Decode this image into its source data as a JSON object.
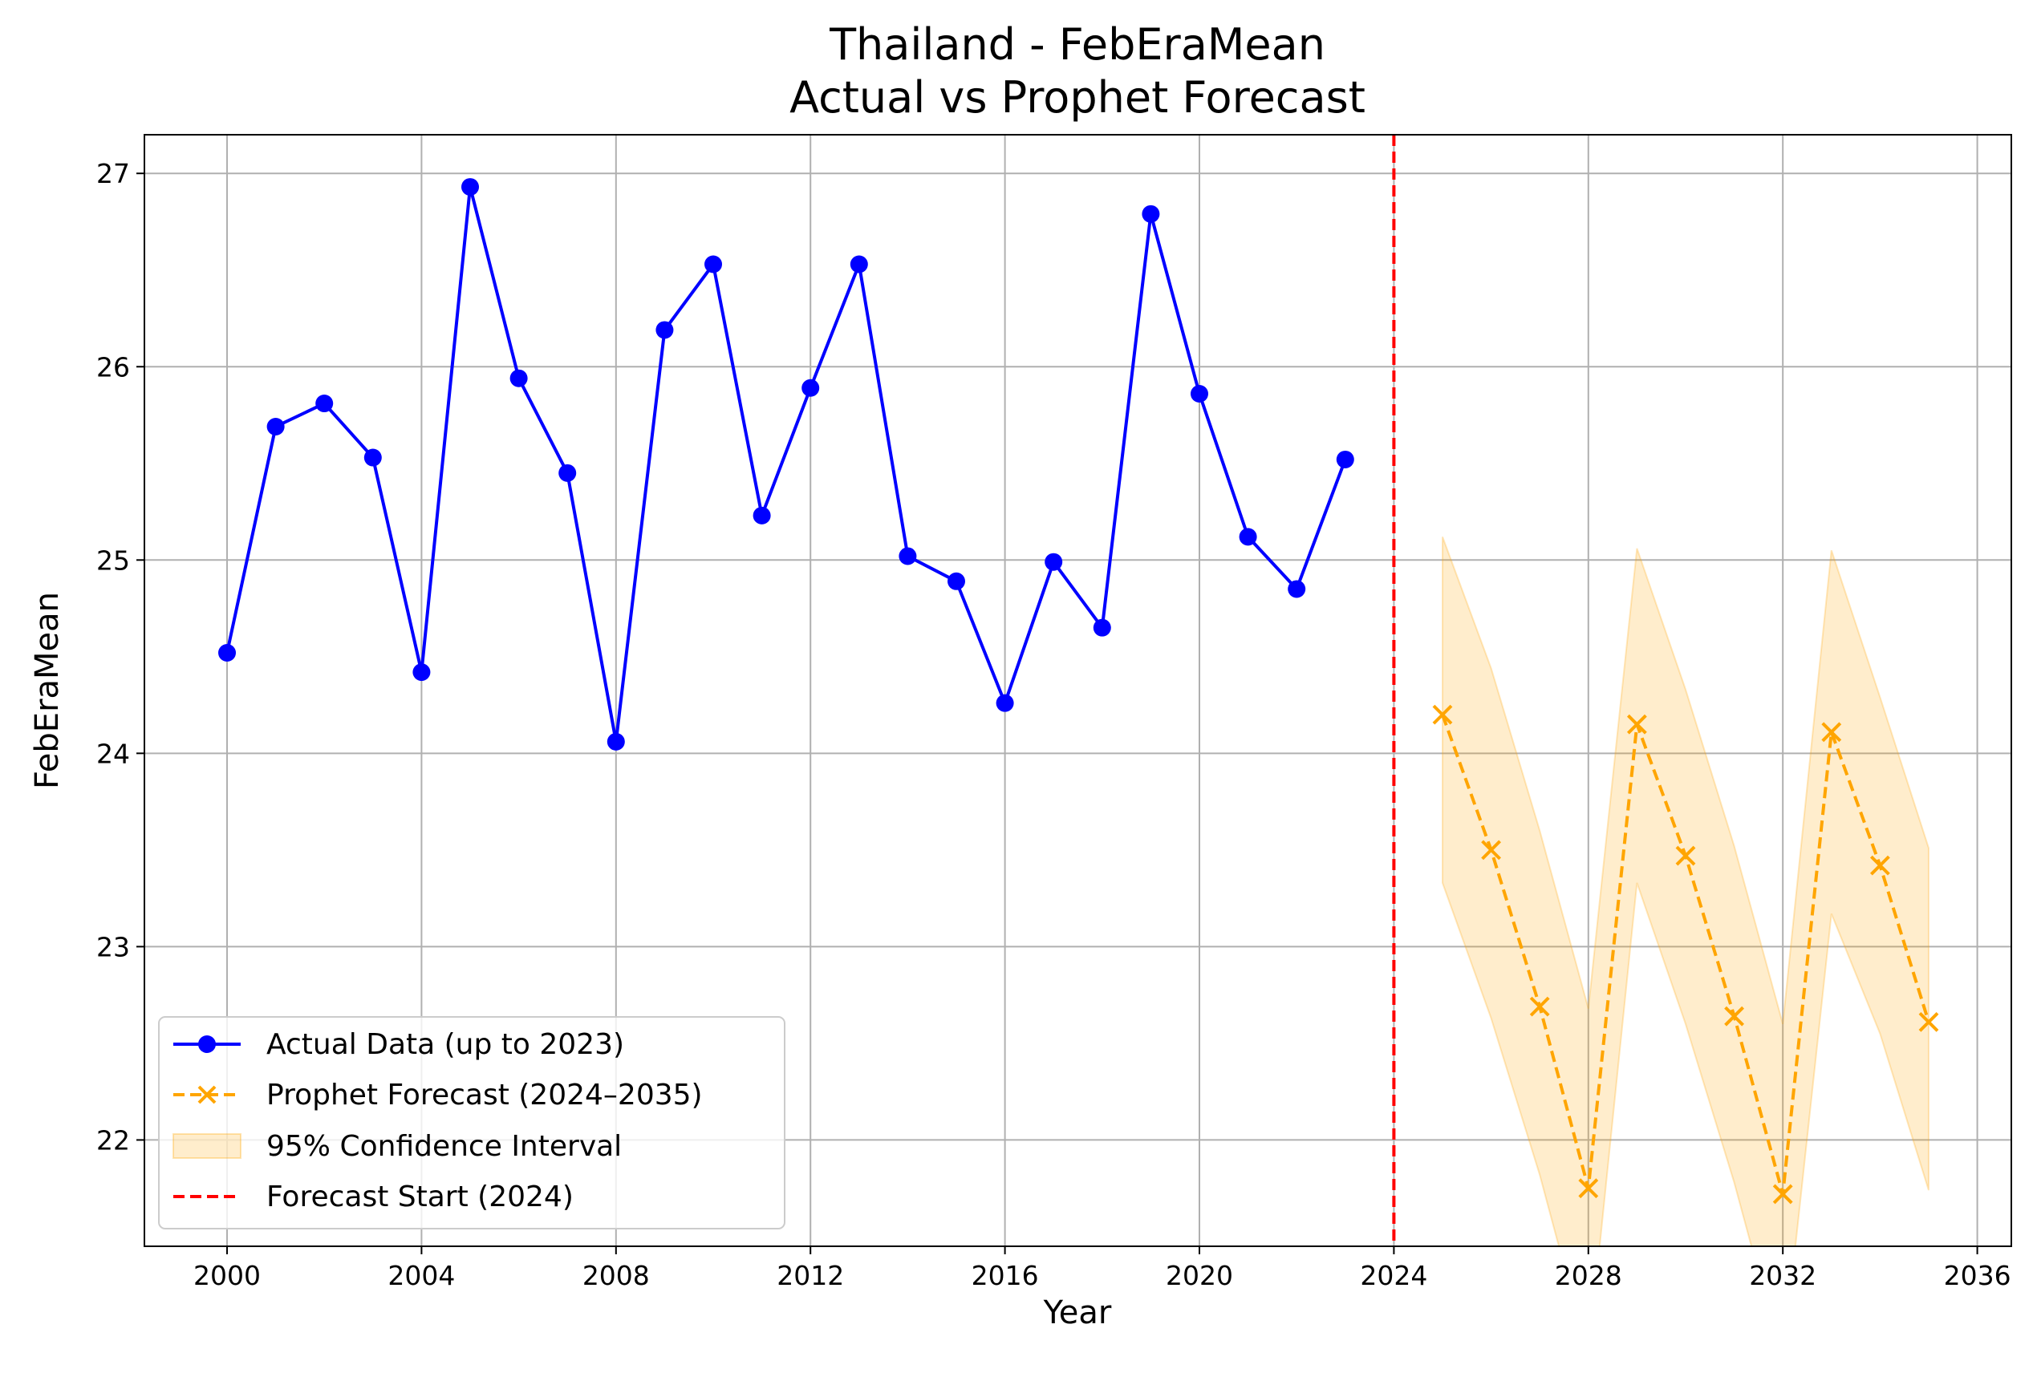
{
  "chart_data": {
    "type": "line",
    "title": "Thailand - FebEraMean",
    "subtitle": "Actual vs Prophet Forecast",
    "xlabel": "Year",
    "ylabel": "FebEraMean",
    "xlim": [
      1998.3,
      2036.7
    ],
    "ylim": [
      21.45,
      27.2
    ],
    "x_ticks": [
      2000,
      2004,
      2008,
      2012,
      2016,
      2020,
      2024,
      2028,
      2032,
      2036
    ],
    "y_ticks": [
      22,
      23,
      24,
      25,
      26,
      27
    ],
    "grid": true,
    "legend_position": "lower-left",
    "series": [
      {
        "name": "Actual Data (up to 2023)",
        "color": "#0000ff",
        "style": "solid",
        "marker": "circle",
        "x": [
          2000,
          2001,
          2002,
          2003,
          2004,
          2005,
          2006,
          2007,
          2008,
          2009,
          2010,
          2011,
          2012,
          2013,
          2014,
          2015,
          2016,
          2017,
          2018,
          2019,
          2020,
          2021,
          2022,
          2023
        ],
        "y": [
          24.52,
          25.69,
          25.81,
          25.53,
          24.42,
          26.93,
          25.94,
          25.45,
          24.06,
          26.19,
          26.53,
          25.23,
          25.89,
          26.53,
          25.02,
          24.89,
          24.26,
          24.99,
          24.65,
          26.79,
          25.86,
          25.12,
          24.85,
          25.52
        ]
      },
      {
        "name": "Prophet Forecast (2024–2035)",
        "color": "#ffa500",
        "style": "dashed",
        "marker": "x",
        "x": [
          2025,
          2026,
          2027,
          2028,
          2029,
          2030,
          2031,
          2032,
          2033,
          2034,
          2035
        ],
        "y": [
          24.2,
          23.5,
          22.69,
          21.75,
          24.15,
          23.47,
          22.64,
          21.72,
          24.11,
          23.42,
          22.61
        ]
      }
    ],
    "confidence_interval": {
      "name": "95% Confidence Interval",
      "color": "#ffa500",
      "x": [
        2025,
        2026,
        2027,
        2028,
        2029,
        2030,
        2031,
        2032,
        2033,
        2034,
        2035
      ],
      "lower": [
        23.33,
        22.63,
        21.82,
        20.88,
        23.33,
        22.6,
        21.78,
        20.85,
        23.17,
        22.55,
        21.74
      ],
      "upper": [
        25.12,
        24.44,
        23.6,
        22.68,
        25.06,
        24.33,
        23.52,
        22.6,
        25.05,
        24.29,
        23.51
      ]
    },
    "vline": {
      "name": "Forecast Start (2024)",
      "x": 2024,
      "color": "#ff0000",
      "style": "dashed"
    }
  }
}
